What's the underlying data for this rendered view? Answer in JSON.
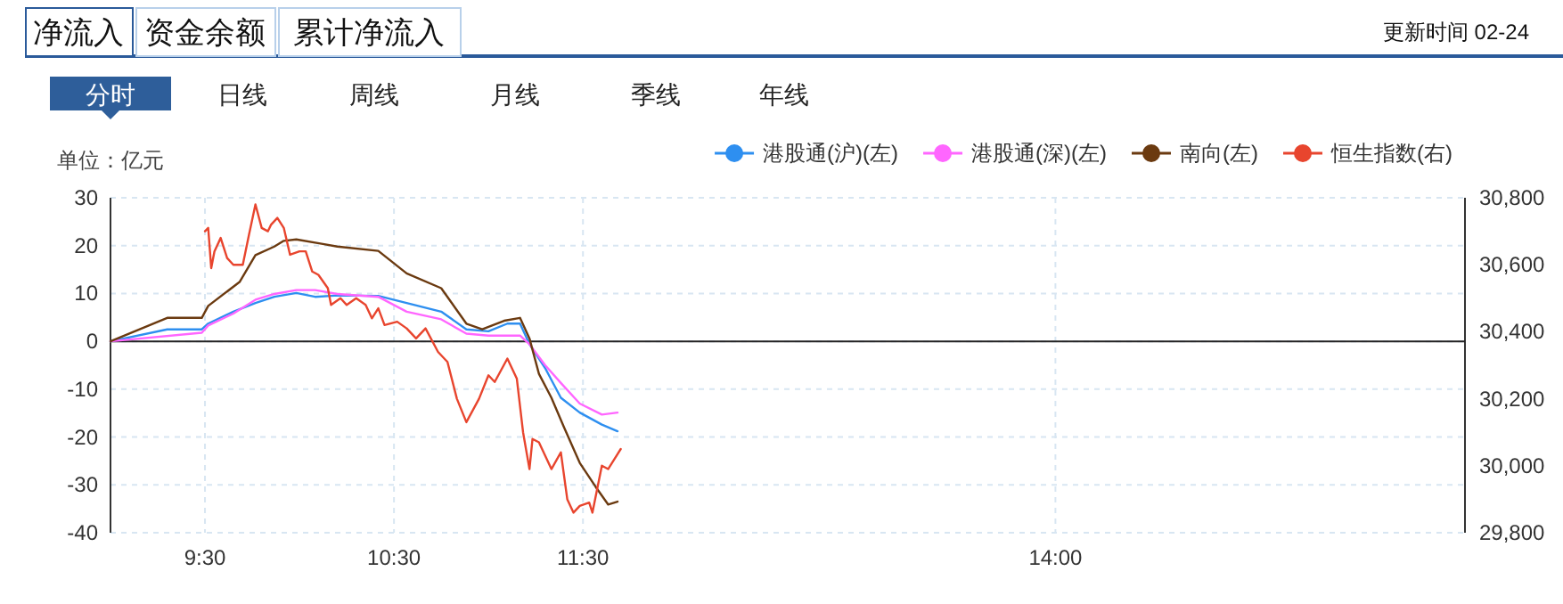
{
  "chart_data": {
    "type": "line",
    "ylabel": "单位：亿元",
    "annotations": [
      "净流入",
      "资金余额",
      "累计净流入",
      "更新时间 02-24",
      "分时",
      "日线",
      "周线",
      "月线",
      "季线",
      "年线"
    ],
    "xlim": [
      9,
      16.167
    ],
    "xticks": [
      {
        "value": 9.5,
        "label": "9:30"
      },
      {
        "value": 10.5,
        "label": "10:30"
      },
      {
        "value": 11.5,
        "label": "11:30"
      },
      {
        "value": 14,
        "label": "14:00"
      }
    ],
    "ylim": [
      -40,
      30
    ],
    "yticks": [
      -40,
      -30,
      -20,
      -10,
      0,
      10,
      20,
      30
    ],
    "y2lim": [
      29800,
      30800
    ],
    "y2ticks": [
      {
        "value": 29800,
        "label": "29,800"
      },
      {
        "value": 30000,
        "label": "30,000"
      },
      {
        "value": 30200,
        "label": "30,200"
      },
      {
        "value": 30400,
        "label": "30,400"
      },
      {
        "value": 30600,
        "label": "30,600"
      },
      {
        "value": 30800,
        "label": "30,800"
      }
    ],
    "grid": true,
    "legend": "top right",
    "series": [
      {
        "name": "港股通(沪)(左)",
        "color": "#2e8ff0",
        "x": [
          9,
          9.3,
          9.483,
          9.517,
          9.65,
          9.767,
          9.867,
          9.983,
          10.083,
          10.2,
          10.417,
          10.567,
          10.75,
          10.883,
          11,
          11.1,
          11.167,
          11.217,
          11.3,
          11.383,
          11.483,
          11.6,
          11.683
        ],
        "values": [
          0,
          2.5,
          2.5,
          3.7,
          6.2,
          8.0,
          9.3,
          10.1,
          9.3,
          9.6,
          9.5,
          8.0,
          6.2,
          2.5,
          2.1,
          3.7,
          3.7,
          -0.6,
          -5.6,
          -11.8,
          -14.9,
          -17.4,
          -18.8
        ]
      },
      {
        "name": "港股通(深)(左)",
        "color": "#ff66ff",
        "x": [
          9,
          9.483,
          9.517,
          9.65,
          9.767,
          9.867,
          9.983,
          10.083,
          10.2,
          10.417,
          10.567,
          10.75,
          10.883,
          11,
          11.167,
          11.217,
          11.3,
          11.383,
          11.483,
          11.6,
          11.683
        ],
        "values": [
          0,
          1.8,
          3.3,
          5.8,
          8.7,
          9.9,
          10.7,
          10.7,
          9.9,
          9.3,
          6.2,
          4.6,
          1.6,
          1.2,
          1.2,
          -0.6,
          -5.0,
          -8.7,
          -13.0,
          -15.3,
          -14.9
        ]
      },
      {
        "name": "南向(左)",
        "color": "#6b3a10",
        "x": [
          9,
          9.3,
          9.483,
          9.517,
          9.683,
          9.767,
          9.867,
          9.917,
          9.983,
          10.117,
          10.2,
          10.417,
          10.567,
          10.75,
          10.883,
          10.967,
          11.083,
          11.167,
          11.217,
          11.267,
          11.333,
          11.4,
          11.483,
          11.567,
          11.633,
          11.683
        ],
        "values": [
          0,
          4.9,
          4.9,
          7.4,
          12.4,
          18,
          19.8,
          21,
          21.3,
          20.4,
          19.8,
          18.9,
          14.2,
          11.1,
          3.7,
          2.5,
          4.3,
          4.9,
          0.6,
          -6.8,
          -11.8,
          -18,
          -25.4,
          -30.4,
          -34.1,
          -33.5
        ]
      },
      {
        "name": "恒生指数(右)",
        "color": "#e8452e",
        "axis": "y2",
        "x": [
          9.5,
          9.517,
          9.533,
          9.55,
          9.583,
          9.617,
          9.65,
          9.7,
          9.733,
          9.767,
          9.8,
          9.833,
          9.85,
          9.883,
          9.917,
          9.95,
          10,
          10.033,
          10.067,
          10.1,
          10.15,
          10.167,
          10.217,
          10.25,
          10.3,
          10.35,
          10.383,
          10.417,
          10.45,
          10.517,
          10.567,
          10.617,
          10.667,
          10.733,
          10.783,
          10.833,
          10.883,
          10.95,
          11,
          11.033,
          11.1,
          11.15,
          11.183,
          11.217,
          11.233,
          11.267,
          11.333,
          11.383,
          11.417,
          11.45,
          11.483,
          11.533,
          11.55,
          11.6,
          11.633,
          11.7
        ],
        "values": [
          30700,
          30710,
          30590,
          30640,
          30680,
          30620,
          30600,
          30600,
          30690,
          30780,
          30710,
          30700,
          30720,
          30740,
          30710,
          30630,
          30640,
          30640,
          30580,
          30570,
          30530,
          30480,
          30500,
          30480,
          30500,
          30480,
          30440,
          30470,
          30420,
          30430,
          30410,
          30380,
          30410,
          30340,
          30310,
          30200,
          30130,
          30200,
          30270,
          30250,
          30320,
          30260,
          30100,
          29990,
          30080,
          30070,
          29990,
          30040,
          29900,
          29860,
          29880,
          29890,
          29860,
          30000,
          29990,
          30050
        ]
      }
    ]
  }
}
